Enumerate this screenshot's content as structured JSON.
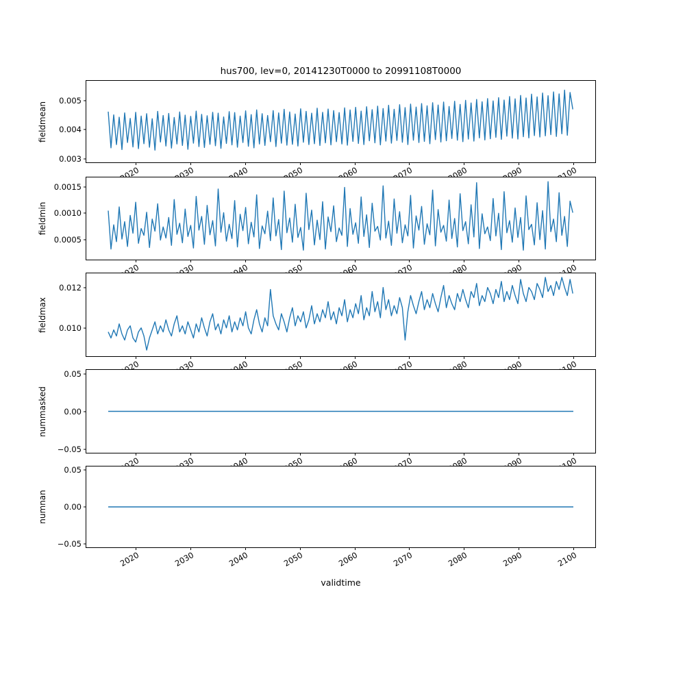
{
  "figure": {
    "title": "hus700, lev=0, 20141230T0000 to 20991108T0000",
    "xlabel": "validtime"
  },
  "line_color": "#1f77b4",
  "x_axis": {
    "xlim": [
      2011,
      2104
    ],
    "ticks": [
      2020,
      2030,
      2040,
      2050,
      2060,
      2070,
      2080,
      2090,
      2100
    ],
    "tick_labels": [
      "2020",
      "2030",
      "2040",
      "2050",
      "2060",
      "2070",
      "2080",
      "2090",
      "2100"
    ]
  },
  "chart_data": [
    {
      "type": "line",
      "name": "fieldmean",
      "ylabel": "fieldmean",
      "x_start": 2015,
      "x_end": 2099.9,
      "ylim": [
        0.00288,
        0.00568
      ],
      "yticks": [
        0.003,
        0.004,
        0.005
      ],
      "ytick_labels": [
        "0.003",
        "0.004",
        "0.005"
      ],
      "scale": 0.0001,
      "values": [
        46.2,
        33.8,
        45.1,
        34.9,
        44.3,
        33.2,
        45.8,
        35.6,
        43.9,
        34.1,
        46.0,
        33.5,
        44.7,
        35.2,
        45.5,
        34.0,
        43.8,
        33.0,
        46.3,
        35.8,
        44.9,
        34.4,
        45.6,
        33.7,
        44.2,
        35.1,
        46.1,
        34.6,
        45.0,
        33.3,
        44.6,
        35.4,
        46.4,
        34.2,
        45.3,
        33.9,
        44.8,
        35.0,
        46.0,
        34.5,
        45.7,
        33.6,
        44.4,
        35.3,
        46.2,
        34.8,
        45.9,
        34.0,
        44.7,
        35.6,
        46.5,
        34.3,
        45.2,
        33.8,
        46.8,
        35.1,
        45.5,
        34.6,
        44.9,
        35.9,
        46.6,
        34.2,
        45.8,
        35.4,
        47.0,
        34.7,
        46.1,
        35.0,
        45.4,
        34.4,
        47.2,
        35.7,
        46.3,
        34.9,
        45.7,
        35.2,
        47.4,
        34.6,
        46.0,
        35.5,
        47.1,
        34.8,
        46.6,
        35.9,
        45.9,
        35.1,
        47.5,
        34.7,
        46.8,
        36.0,
        47.7,
        35.3,
        46.4,
        34.9,
        47.9,
        36.2,
        46.9,
        35.5,
        48.1,
        34.8,
        47.3,
        36.1,
        48.4,
        35.4,
        47.0,
        36.3,
        48.6,
        35.7,
        47.6,
        34.9,
        48.8,
        36.4,
        47.8,
        35.6,
        49.0,
        36.0,
        48.2,
        35.2,
        49.3,
        36.6,
        48.5,
        35.8,
        49.5,
        36.2,
        48.0,
        37.0,
        49.8,
        36.4,
        48.7,
        35.9,
        50.1,
        36.8,
        49.2,
        36.1,
        50.4,
        37.2,
        49.6,
        36.5,
        50.7,
        36.9,
        49.9,
        37.4,
        51.0,
        36.7,
        50.2,
        37.8,
        51.4,
        37.1,
        50.6,
        36.8,
        51.8,
        37.6,
        50.9,
        37.2,
        52.2,
        38.0,
        51.3,
        37.5,
        52.6,
        37.9,
        51.7,
        38.3,
        53.0,
        37.7,
        52.3,
        38.6,
        53.6,
        38.1,
        52.8,
        47.0
      ]
    },
    {
      "type": "line",
      "name": "fieldmin",
      "ylabel": "fieldmin",
      "x_start": 2015,
      "x_end": 2099.9,
      "ylim": [
        0.00012,
        0.00168
      ],
      "yticks": [
        0.0005,
        0.001,
        0.0015
      ],
      "ytick_labels": [
        "0.0005",
        "0.0010",
        "0.0015"
      ],
      "scale": 0.0001,
      "values": [
        10.5,
        3.2,
        7.8,
        4.6,
        11.2,
        5.1,
        8.4,
        3.7,
        9.6,
        6.2,
        12.1,
        4.3,
        7.1,
        5.8,
        10.2,
        3.5,
        8.9,
        6.6,
        11.8,
        4.9,
        7.4,
        5.3,
        9.2,
        3.9,
        12.6,
        6.0,
        8.1,
        4.4,
        10.8,
        5.6,
        7.7,
        3.4,
        13.2,
        6.8,
        9.4,
        4.1,
        11.5,
        5.9,
        8.6,
        3.8,
        14.6,
        6.4,
        10.1,
        4.7,
        7.9,
        5.2,
        12.4,
        3.6,
        9.8,
        6.7,
        11.1,
        4.2,
        8.3,
        5.5,
        13.5,
        3.3,
        7.6,
        6.1,
        10.4,
        4.8,
        12.9,
        5.7,
        8.8,
        3.1,
        14.2,
        6.3,
        9.1,
        4.5,
        11.7,
        5.4,
        7.3,
        3.0,
        13.8,
        6.9,
        10.6,
        4.0,
        8.7,
        5.0,
        12.2,
        3.2,
        9.3,
        6.5,
        11.4,
        4.6,
        7.2,
        5.8,
        14.9,
        3.7,
        10.9,
        6.0,
        8.2,
        4.3,
        13.1,
        5.6,
        9.7,
        3.5,
        11.9,
        6.6,
        7.5,
        4.9,
        15.2,
        5.3,
        8.5,
        3.9,
        12.7,
        6.2,
        10.3,
        4.4,
        7.8,
        5.7,
        13.4,
        3.4,
        9.5,
        6.8,
        11.3,
        4.1,
        8.0,
        5.9,
        14.4,
        3.8,
        10.7,
        6.4,
        7.7,
        4.7,
        12.5,
        5.2,
        9.0,
        3.6,
        13.7,
        6.7,
        8.4,
        4.2,
        11.6,
        5.5,
        15.8,
        3.3,
        9.9,
        6.1,
        7.4,
        4.8,
        12.8,
        5.7,
        10.0,
        3.1,
        14.1,
        6.3,
        8.6,
        4.5,
        11.0,
        5.4,
        9.2,
        3.0,
        13.3,
        6.9,
        7.9,
        4.0,
        12.0,
        5.0,
        10.5,
        3.2,
        16.0,
        6.5,
        8.9,
        4.6,
        13.9,
        5.8,
        9.4,
        3.7,
        12.3,
        10.1
      ]
    },
    {
      "type": "line",
      "name": "fieldmax",
      "ylabel": "fieldmax",
      "x_start": 2015,
      "x_end": 2099.9,
      "ylim": [
        0.0086,
        0.0127
      ],
      "yticks": [
        0.01,
        0.012
      ],
      "ytick_labels": [
        "0.010",
        "0.012"
      ],
      "scale": 0.001,
      "values": [
        9.8,
        9.5,
        9.9,
        9.6,
        10.2,
        9.7,
        9.4,
        9.9,
        10.1,
        9.5,
        9.3,
        9.8,
        10.0,
        9.6,
        8.9,
        9.5,
        9.9,
        10.3,
        9.7,
        10.1,
        9.8,
        10.4,
        9.9,
        9.6,
        10.2,
        10.6,
        9.8,
        10.1,
        9.7,
        10.3,
        9.9,
        9.5,
        10.2,
        9.8,
        10.5,
        10.0,
        9.6,
        10.3,
        10.7,
        9.9,
        10.2,
        9.7,
        10.4,
        10.0,
        10.6,
        9.8,
        10.3,
        9.9,
        10.5,
        10.1,
        10.8,
        10.0,
        9.7,
        10.4,
        10.9,
        10.2,
        9.8,
        10.5,
        10.1,
        11.9,
        10.6,
        10.2,
        9.9,
        10.7,
        10.3,
        9.8,
        10.5,
        11.0,
        10.1,
        10.6,
        10.3,
        10.8,
        10.0,
        10.4,
        11.1,
        10.2,
        10.7,
        10.3,
        10.9,
        10.5,
        11.3,
        10.4,
        10.8,
        10.2,
        11.0,
        10.6,
        11.4,
        10.3,
        10.9,
        10.5,
        11.2,
        10.7,
        11.6,
        10.4,
        11.0,
        10.6,
        11.8,
        10.8,
        11.3,
        10.5,
        12.0,
        10.9,
        11.4,
        10.6,
        11.1,
        10.7,
        11.5,
        11.0,
        9.4,
        10.8,
        11.6,
        11.1,
        10.7,
        11.3,
        11.8,
        10.9,
        11.4,
        11.0,
        11.7,
        11.2,
        10.8,
        11.5,
        12.1,
        11.0,
        11.6,
        11.2,
        10.9,
        11.7,
        11.3,
        11.9,
        11.4,
        11.0,
        11.8,
        11.5,
        12.2,
        11.1,
        11.6,
        11.3,
        12.0,
        11.7,
        11.2,
        11.9,
        11.5,
        12.3,
        11.3,
        11.8,
        11.4,
        12.1,
        11.6,
        11.2,
        12.4,
        11.7,
        11.3,
        12.0,
        11.8,
        11.4,
        12.2,
        11.9,
        11.5,
        12.5,
        11.8,
        12.1,
        11.6,
        12.3,
        11.9,
        12.5,
        12.0,
        11.6,
        12.4,
        11.7
      ]
    },
    {
      "type": "line",
      "name": "nummasked",
      "ylabel": "nummasked",
      "x_start": 2015,
      "x_end": 2100,
      "ylim": [
        -0.055,
        0.055
      ],
      "yticks": [
        -0.05,
        0.0,
        0.05
      ],
      "ytick_labels": [
        "−0.05",
        "0.00",
        "0.05"
      ],
      "scale": 1,
      "values": [
        0,
        0
      ]
    },
    {
      "type": "line",
      "name": "numnan",
      "ylabel": "numnan",
      "x_start": 2015,
      "x_end": 2100,
      "ylim": [
        -0.055,
        0.055
      ],
      "yticks": [
        -0.05,
        0.0,
        0.05
      ],
      "ytick_labels": [
        "−0.05",
        "0.00",
        "0.05"
      ],
      "scale": 1,
      "values": [
        0,
        0
      ]
    }
  ]
}
